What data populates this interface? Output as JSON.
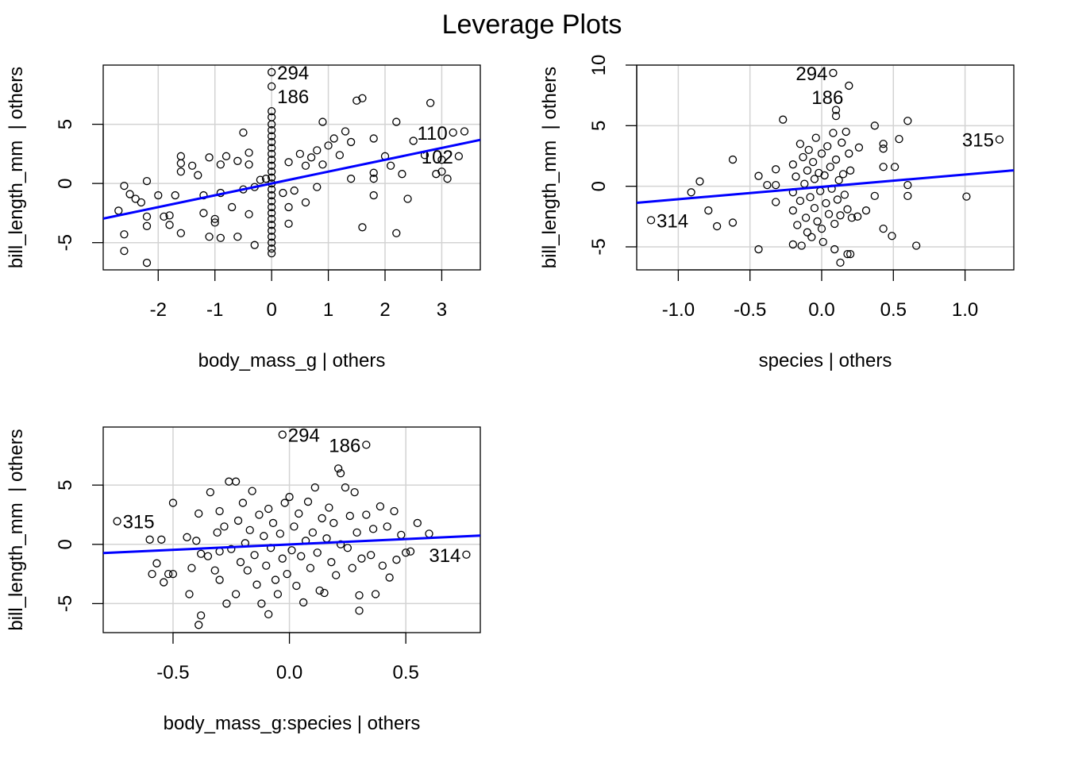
{
  "title": "Leverage Plots",
  "colors": {
    "fit_line": "#0000ff",
    "grid": "#d3d3d3",
    "points": "#000000"
  },
  "chart_data": [
    {
      "type": "scatter",
      "xlabel": "body_mass_g | others",
      "ylabel": "bill_length_mm  | others",
      "xlim": [
        -2.97,
        3.68
      ],
      "ylim": [
        -7.3,
        10.0
      ],
      "x_ticks": [
        -2,
        -1,
        0,
        1,
        2,
        3
      ],
      "x_tick_labels": [
        "-2",
        "-1",
        "0",
        "1",
        "2",
        "3"
      ],
      "y_ticks": [
        -5,
        0,
        5
      ],
      "y_tick_labels": [
        "-5",
        "0",
        "5"
      ],
      "grid": true,
      "fit_line": {
        "slope": 1.0,
        "intercept": 0.0
      },
      "points": [
        [
          -2.7,
          -2.3
        ],
        [
          -2.6,
          -0.2
        ],
        [
          -2.5,
          -0.9
        ],
        [
          -2.6,
          -4.3
        ],
        [
          -2.6,
          -5.7
        ],
        [
          -2.2,
          -6.7
        ],
        [
          -2.2,
          0.2
        ],
        [
          -2.2,
          -2.8
        ],
        [
          -2.2,
          -3.6
        ],
        [
          -2.4,
          -1.3
        ],
        [
          -2.3,
          -1.6
        ],
        [
          -2.0,
          -1.0
        ],
        [
          -1.9,
          -2.8
        ],
        [
          -1.8,
          -3.5
        ],
        [
          -1.8,
          -2.7
        ],
        [
          -1.7,
          -1.0
        ],
        [
          -1.6,
          -4.2
        ],
        [
          -1.6,
          2.3
        ],
        [
          -1.6,
          1.7
        ],
        [
          -1.6,
          1.0
        ],
        [
          -1.4,
          1.5
        ],
        [
          -1.3,
          0.7
        ],
        [
          -1.2,
          -2.5
        ],
        [
          -1.2,
          -1.0
        ],
        [
          -1.1,
          2.2
        ],
        [
          -1.1,
          -4.5
        ],
        [
          -1.0,
          -3.0
        ],
        [
          -1.0,
          -3.3
        ],
        [
          -0.9,
          -0.8
        ],
        [
          -0.9,
          -4.6
        ],
        [
          -0.9,
          1.6
        ],
        [
          -0.8,
          2.3
        ],
        [
          -0.7,
          -2.0
        ],
        [
          -0.6,
          1.9
        ],
        [
          -0.6,
          -4.5
        ],
        [
          -0.5,
          4.3
        ],
        [
          -0.5,
          -0.5
        ],
        [
          -0.4,
          -2.6
        ],
        [
          -0.4,
          2.6
        ],
        [
          -0.4,
          1.6
        ],
        [
          -0.3,
          -5.2
        ],
        [
          -0.3,
          -0.3
        ],
        [
          -0.2,
          0.3
        ],
        [
          -0.1,
          0.4
        ],
        [
          0,
          -5.9
        ],
        [
          0,
          -5.5
        ],
        [
          0,
          -5.0
        ],
        [
          0,
          -4.5
        ],
        [
          0,
          -4.0
        ],
        [
          0,
          -3.5
        ],
        [
          0,
          -3.0
        ],
        [
          0,
          -2.5
        ],
        [
          0,
          -2.0
        ],
        [
          0,
          -1.5
        ],
        [
          0,
          -1.0
        ],
        [
          0,
          -0.5
        ],
        [
          0,
          0
        ],
        [
          0,
          0.5
        ],
        [
          0,
          1.0
        ],
        [
          0,
          1.5
        ],
        [
          0,
          2.0
        ],
        [
          0,
          2.5
        ],
        [
          0,
          3.0
        ],
        [
          0,
          3.5
        ],
        [
          0,
          4.0
        ],
        [
          0,
          4.5
        ],
        [
          0,
          5.0
        ],
        [
          0,
          5.6
        ],
        [
          0,
          6.1
        ],
        [
          0.2,
          -0.8
        ],
        [
          0.3,
          -2.0
        ],
        [
          0.3,
          -3.4
        ],
        [
          0.3,
          1.8
        ],
        [
          0.4,
          -0.6
        ],
        [
          0.5,
          2.5
        ],
        [
          0.6,
          1.5
        ],
        [
          0.6,
          -1.6
        ],
        [
          0.7,
          2.2
        ],
        [
          0.8,
          2.8
        ],
        [
          0.8,
          -0.3
        ],
        [
          0.9,
          5.2
        ],
        [
          0.9,
          1.6
        ],
        [
          1.0,
          3.2
        ],
        [
          1.1,
          3.8
        ],
        [
          1.2,
          2.4
        ],
        [
          1.3,
          4.4
        ],
        [
          1.4,
          3.5
        ],
        [
          1.4,
          0.4
        ],
        [
          1.5,
          7.0
        ],
        [
          1.6,
          7.2
        ],
        [
          1.6,
          -3.7
        ],
        [
          1.8,
          3.8
        ],
        [
          1.8,
          0.9
        ],
        [
          1.8,
          0.4
        ],
        [
          1.8,
          -1.0
        ],
        [
          2.0,
          2.3
        ],
        [
          2.1,
          1.5
        ],
        [
          2.2,
          5.2
        ],
        [
          2.2,
          -4.2
        ],
        [
          2.3,
          0.8
        ],
        [
          2.4,
          -1.3
        ],
        [
          2.5,
          3.6
        ],
        [
          2.7,
          2.4
        ],
        [
          2.8,
          6.8
        ],
        [
          2.9,
          0.8
        ],
        [
          3.0,
          2.0
        ],
        [
          3.0,
          1.0
        ],
        [
          3.1,
          0.4
        ],
        [
          3.4,
          4.4
        ]
      ],
      "labeled_points": [
        {
          "x": 0,
          "y": 9.4,
          "label": "294",
          "side": "right"
        },
        {
          "x": 0,
          "y": 8.2,
          "label": "186",
          "side": "right"
        },
        {
          "x": 3.2,
          "y": 4.3,
          "label": "110",
          "side": "left"
        },
        {
          "x": 3.3,
          "y": 2.3,
          "label": "102",
          "side": "left"
        }
      ]
    },
    {
      "type": "scatter",
      "xlabel": "species | others",
      "ylabel": "bill_length_mm  | others",
      "xlim": [
        -1.29,
        1.34
      ],
      "ylim": [
        -6.9,
        10.0
      ],
      "x_ticks": [
        -1.0,
        -0.5,
        0.0,
        0.5,
        1.0
      ],
      "x_tick_labels": [
        "-1.0",
        "-0.5",
        "0.0",
        "0.5",
        "1.0"
      ],
      "y_ticks": [
        -5,
        0,
        5,
        10
      ],
      "y_tick_labels": [
        "-5",
        "0",
        "5",
        "10"
      ],
      "grid": true,
      "fit_line": {
        "slope": 1.02,
        "intercept": -0.05
      },
      "points": [
        [
          -0.91,
          -0.5
        ],
        [
          -0.85,
          0.4
        ],
        [
          -0.79,
          -2.0
        ],
        [
          -0.73,
          -3.3
        ],
        [
          -0.62,
          -3.0
        ],
        [
          -0.62,
          2.2
        ],
        [
          -0.44,
          -5.2
        ],
        [
          -0.44,
          0.85
        ],
        [
          -0.38,
          0.1
        ],
        [
          -0.32,
          0.1
        ],
        [
          -0.32,
          -1.3
        ],
        [
          -0.27,
          5.5
        ],
        [
          -0.32,
          1.4
        ],
        [
          -0.2,
          1.8
        ],
        [
          -0.2,
          -0.5
        ],
        [
          -0.2,
          -2.0
        ],
        [
          -0.2,
          -4.8
        ],
        [
          -0.18,
          0.8
        ],
        [
          -0.17,
          -3.2
        ],
        [
          -0.15,
          3.5
        ],
        [
          -0.15,
          -1.2
        ],
        [
          -0.14,
          -4.9
        ],
        [
          -0.13,
          2.4
        ],
        [
          -0.12,
          0.2
        ],
        [
          -0.11,
          -2.6
        ],
        [
          -0.1,
          1.3
        ],
        [
          -0.1,
          -3.8
        ],
        [
          -0.09,
          3.0
        ],
        [
          -0.08,
          -0.9
        ],
        [
          -0.07,
          -4.2
        ],
        [
          -0.06,
          2.0
        ],
        [
          -0.05,
          0.6
        ],
        [
          -0.05,
          -1.8
        ],
        [
          -0.04,
          4.0
        ],
        [
          -0.03,
          -2.9
        ],
        [
          -0.02,
          1.1
        ],
        [
          -0.01,
          -0.4
        ],
        [
          0.0,
          2.7
        ],
        [
          0.0,
          -3.5
        ],
        [
          0.01,
          -4.6
        ],
        [
          0.02,
          0.9
        ],
        [
          0.03,
          -1.4
        ],
        [
          0.04,
          3.3
        ],
        [
          0.05,
          -2.3
        ],
        [
          0.06,
          1.6
        ],
        [
          0.07,
          -0.2
        ],
        [
          0.08,
          4.4
        ],
        [
          0.09,
          -3.1
        ],
        [
          0.1,
          6.3
        ],
        [
          0.1,
          5.8
        ],
        [
          0.1,
          2.2
        ],
        [
          0.11,
          -1.1
        ],
        [
          0.12,
          0.5
        ],
        [
          0.13,
          -2.4
        ],
        [
          0.14,
          3.6
        ],
        [
          0.15,
          1.0
        ],
        [
          0.16,
          -0.7
        ],
        [
          0.17,
          4.5
        ],
        [
          0.18,
          -1.9
        ],
        [
          0.19,
          2.7
        ],
        [
          0.2,
          1.3
        ],
        [
          0.21,
          -2.6
        ],
        [
          0.09,
          -5.2
        ],
        [
          0.13,
          -6.3
        ],
        [
          0.18,
          -5.6
        ],
        [
          0.2,
          -5.6
        ],
        [
          0.25,
          -2.5
        ],
        [
          0.26,
          3.2
        ],
        [
          0.31,
          -2.0
        ],
        [
          0.37,
          -0.8
        ],
        [
          0.37,
          5.0
        ],
        [
          0.43,
          3.5
        ],
        [
          0.43,
          3.1
        ],
        [
          0.43,
          1.6
        ],
        [
          0.51,
          1.6
        ],
        [
          0.54,
          3.9
        ],
        [
          0.6,
          5.4
        ],
        [
          0.6,
          0.1
        ],
        [
          0.6,
          -0.8
        ],
        [
          0.43,
          -3.5
        ],
        [
          0.49,
          -4.1
        ],
        [
          0.66,
          -4.9
        ],
        [
          1.01,
          -0.85
        ]
      ],
      "labeled_points": [
        {
          "x": 0.08,
          "y": 9.35,
          "label": "294",
          "side": "left"
        },
        {
          "x": 0.19,
          "y": 8.3,
          "label": "186",
          "side": "left"
        },
        {
          "x": 1.24,
          "y": 3.86,
          "label": "315",
          "side": "left"
        },
        {
          "x": -1.19,
          "y": -2.8,
          "label": "314",
          "side": "right"
        }
      ]
    },
    {
      "type": "scatter",
      "xlabel": "body_mass_g:species | others",
      "ylabel": "bill_length_mm  | others",
      "xlim": [
        -0.8,
        0.82
      ],
      "ylim": [
        -7.45,
        9.9
      ],
      "x_ticks": [
        -0.5,
        0.0,
        0.5
      ],
      "x_tick_labels": [
        "-0.5",
        "0.0",
        "0.5"
      ],
      "y_ticks": [
        -5,
        0,
        5
      ],
      "y_tick_labels": [
        "-5",
        "0",
        "5"
      ],
      "grid": true,
      "fit_line": {
        "slope": 0.91,
        "intercept": -0.01
      },
      "points": [
        [
          -0.6,
          0.4
        ],
        [
          -0.55,
          0.4
        ],
        [
          -0.59,
          -2.5
        ],
        [
          -0.57,
          -1.6
        ],
        [
          -0.54,
          -3.2
        ],
        [
          -0.52,
          -2.5
        ],
        [
          -0.5,
          -2.5
        ],
        [
          -0.5,
          3.5
        ],
        [
          -0.44,
          0.6
        ],
        [
          -0.43,
          -4.2
        ],
        [
          -0.42,
          -2.0
        ],
        [
          -0.4,
          0.3
        ],
        [
          -0.39,
          2.6
        ],
        [
          -0.38,
          -0.8
        ],
        [
          -0.38,
          -6.0
        ],
        [
          -0.39,
          -6.8
        ],
        [
          -0.35,
          -1.0
        ],
        [
          -0.34,
          4.4
        ],
        [
          -0.32,
          -2.2
        ],
        [
          -0.31,
          1.0
        ],
        [
          -0.3,
          2.8
        ],
        [
          -0.3,
          -0.6
        ],
        [
          -0.3,
          -3.0
        ],
        [
          -0.28,
          1.5
        ],
        [
          -0.27,
          -5.0
        ],
        [
          -0.26,
          5.3
        ],
        [
          -0.25,
          -0.4
        ],
        [
          -0.23,
          5.3
        ],
        [
          -0.23,
          -4.2
        ],
        [
          -0.22,
          2.0
        ],
        [
          -0.21,
          -1.5
        ],
        [
          -0.2,
          3.5
        ],
        [
          -0.19,
          0.1
        ],
        [
          -0.18,
          -2.2
        ],
        [
          -0.17,
          1.2
        ],
        [
          -0.16,
          4.5
        ],
        [
          -0.15,
          -0.9
        ],
        [
          -0.14,
          -3.4
        ],
        [
          -0.13,
          2.5
        ],
        [
          -0.12,
          -5.0
        ],
        [
          -0.11,
          0.7
        ],
        [
          -0.1,
          -1.8
        ],
        [
          -0.09,
          3.0
        ],
        [
          -0.09,
          -5.9
        ],
        [
          -0.08,
          -0.3
        ],
        [
          -0.07,
          1.8
        ],
        [
          -0.06,
          -3.0
        ],
        [
          -0.05,
          -4.2
        ],
        [
          -0.04,
          0.9
        ],
        [
          -0.03,
          -1.2
        ],
        [
          -0.02,
          3.5
        ],
        [
          -0.01,
          -2.5
        ],
        [
          0.0,
          4.0
        ],
        [
          0.01,
          -0.5
        ],
        [
          0.02,
          1.5
        ],
        [
          0.03,
          -3.5
        ],
        [
          0.04,
          2.6
        ],
        [
          0.05,
          -1.0
        ],
        [
          0.06,
          -4.9
        ],
        [
          0.07,
          0.3
        ],
        [
          0.08,
          3.6
        ],
        [
          0.09,
          -2.0
        ],
        [
          0.1,
          1.0
        ],
        [
          0.11,
          4.8
        ],
        [
          0.12,
          -0.7
        ],
        [
          0.13,
          -3.9
        ],
        [
          0.14,
          2.2
        ],
        [
          0.15,
          -4.1
        ],
        [
          0.16,
          0.5
        ],
        [
          0.17,
          3.1
        ],
        [
          0.18,
          -1.5
        ],
        [
          0.19,
          1.8
        ],
        [
          0.2,
          -2.6
        ],
        [
          0.21,
          6.4
        ],
        [
          0.22,
          6.0
        ],
        [
          0.22,
          0.0
        ],
        [
          0.24,
          4.8
        ],
        [
          0.25,
          -0.3
        ],
        [
          0.26,
          2.4
        ],
        [
          0.27,
          -2.0
        ],
        [
          0.28,
          4.4
        ],
        [
          0.29,
          1.0
        ],
        [
          0.3,
          -4.3
        ],
        [
          0.3,
          -5.6
        ],
        [
          0.31,
          -1.2
        ],
        [
          0.33,
          2.5
        ],
        [
          0.35,
          -0.9
        ],
        [
          0.36,
          1.3
        ],
        [
          0.37,
          -4.2
        ],
        [
          0.39,
          3.2
        ],
        [
          0.4,
          -1.8
        ],
        [
          0.42,
          1.5
        ],
        [
          0.43,
          -2.8
        ],
        [
          0.45,
          2.8
        ],
        [
          0.46,
          -1.3
        ],
        [
          0.48,
          0.8
        ],
        [
          0.5,
          -0.7
        ],
        [
          0.52,
          -0.6
        ],
        [
          0.55,
          1.8
        ],
        [
          0.6,
          0.9
        ]
      ],
      "labeled_points": [
        {
          "x": -0.03,
          "y": 9.26,
          "label": "294",
          "side": "right"
        },
        {
          "x": 0.33,
          "y": 8.4,
          "label": "186",
          "side": "left"
        },
        {
          "x": -0.74,
          "y": 1.95,
          "label": "315",
          "side": "right"
        },
        {
          "x": 0.76,
          "y": -0.87,
          "label": "314",
          "side": "left"
        }
      ]
    }
  ]
}
